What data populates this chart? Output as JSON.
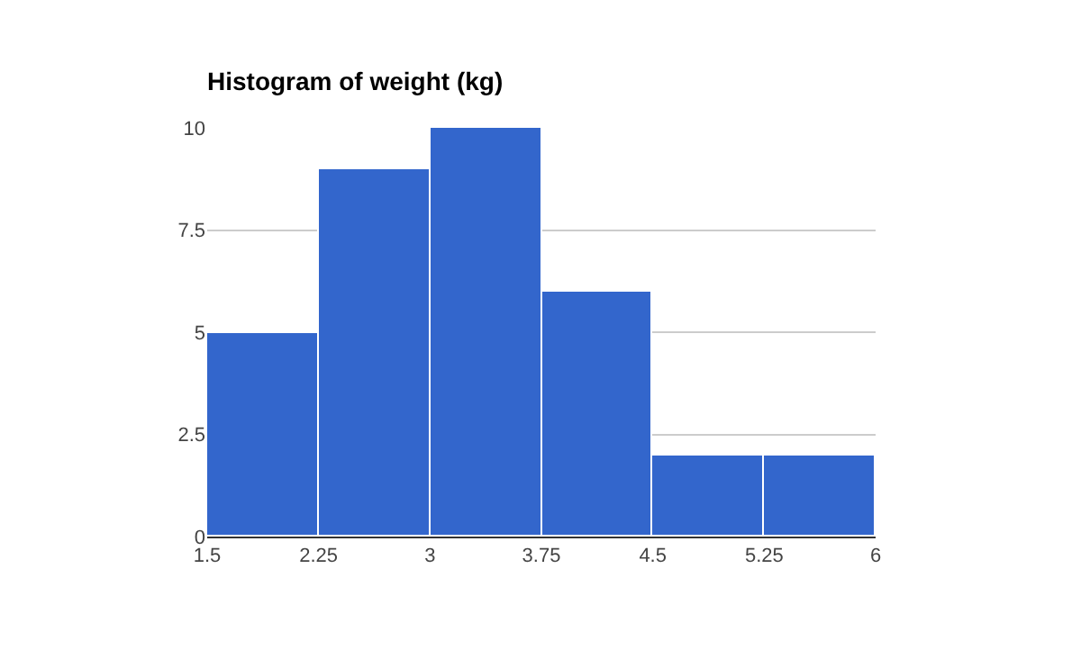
{
  "chart_data": {
    "type": "histogram",
    "title": "Histogram of weight (kg)",
    "bins": [
      1.5,
      2.25,
      3,
      3.75,
      4.5,
      5.25,
      6
    ],
    "values": [
      5,
      9,
      10,
      6,
      2,
      2
    ],
    "color": "#3366cc",
    "xlim": [
      1.5,
      6
    ],
    "xticks": [
      1.5,
      2.25,
      3,
      3.75,
      4.5,
      5.25,
      6
    ],
    "ylim": [
      0,
      10
    ],
    "yticks": [
      0,
      2.5,
      5,
      7.5,
      10
    ],
    "grid": "y"
  }
}
